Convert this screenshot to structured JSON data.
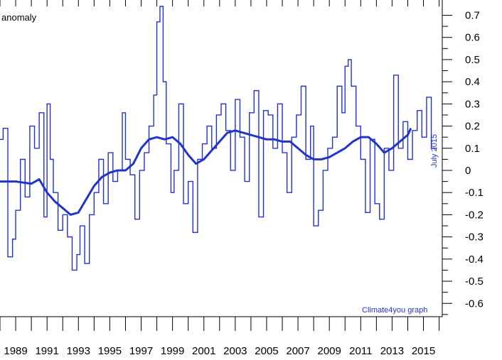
{
  "chart_data": {
    "type": "line",
    "title": "",
    "ylabel_partial": "anomaly",
    "annotations": {
      "date_stamp": "July 2015",
      "credit": "Climate4you graph"
    },
    "colors": {
      "series": "#2233cc",
      "axes": "#000000"
    },
    "grid": false,
    "xlim": [
      1988,
      2016.2
    ],
    "ylim": [
      -0.66,
      0.74
    ],
    "x_tick_labels": [
      "1989",
      "1991",
      "1993",
      "1995",
      "1997",
      "1999",
      "2001",
      "2003",
      "2005",
      "2007",
      "2009",
      "2011",
      "2013",
      "2015"
    ],
    "x_tick_values": [
      1989,
      1991,
      1993,
      1995,
      1997,
      1999,
      2001,
      2003,
      2005,
      2007,
      2009,
      2011,
      2013,
      2015
    ],
    "y_tick_labels": [
      "0.7",
      "0.6",
      "0.5",
      "0.4",
      "0.3",
      "0.2",
      "0.1",
      "0",
      "-0.1",
      "-0.2",
      "-0.3",
      "-0.4",
      "-0.5",
      "-0.6"
    ],
    "y_tick_values": [
      0.7,
      0.6,
      0.5,
      0.4,
      0.3,
      0.2,
      0.1,
      0,
      -0.1,
      -0.2,
      -0.3,
      -0.4,
      -0.5,
      -0.6
    ],
    "series": [
      {
        "style": "monthly-step",
        "x": [
          1988.0,
          1988.2,
          1988.5,
          1988.8,
          1989.0,
          1989.3,
          1989.6,
          1989.9,
          1990.2,
          1990.5,
          1990.8,
          1991.0,
          1991.2,
          1991.4,
          1991.7,
          1992.0,
          1992.3,
          1992.6,
          1992.9,
          1993.1,
          1993.4,
          1993.7,
          1994.0,
          1994.3,
          1994.6,
          1994.9,
          1995.2,
          1995.5,
          1995.8,
          1996.0,
          1996.3,
          1996.6,
          1996.9,
          1997.2,
          1997.5,
          1997.8,
          1998.0,
          1998.2,
          1998.4,
          1998.6,
          1998.9,
          1999.1,
          1999.4,
          1999.7,
          2000.0,
          2000.3,
          2000.6,
          2000.9,
          2001.2,
          2001.5,
          2001.8,
          2002.1,
          2002.4,
          2002.7,
          2003.0,
          2003.3,
          2003.6,
          2003.9,
          2004.2,
          2004.5,
          2004.8,
          2005.1,
          2005.4,
          2005.7,
          2006.0,
          2006.3,
          2006.6,
          2006.9,
          2007.2,
          2007.5,
          2007.8,
          2008.0,
          2008.3,
          2008.6,
          2008.9,
          2009.2,
          2009.5,
          2009.8,
          2010.0,
          2010.2,
          2010.4,
          2010.7,
          2011.0,
          2011.3,
          2011.6,
          2011.9,
          2012.2,
          2012.5,
          2012.8,
          2013.1,
          2013.4,
          2013.7,
          2014.0,
          2014.3,
          2014.6,
          2014.9,
          2015.2,
          2015.5
        ],
        "y": [
          0.14,
          0.19,
          -0.39,
          -0.31,
          -0.18,
          0.05,
          -0.12,
          0.2,
          0.1,
          0.26,
          -0.21,
          0.3,
          0.05,
          -0.1,
          -0.27,
          -0.2,
          -0.3,
          -0.45,
          -0.38,
          -0.25,
          -0.42,
          -0.2,
          -0.1,
          0.05,
          -0.15,
          0.08,
          -0.05,
          0.0,
          0.26,
          0.05,
          -0.02,
          -0.22,
          0.0,
          0.08,
          0.2,
          0.34,
          0.67,
          0.74,
          0.4,
          0.12,
          -0.1,
          0.0,
          0.3,
          -0.15,
          -0.05,
          -0.28,
          0.05,
          0.12,
          0.2,
          0.1,
          0.25,
          0.3,
          0.18,
          0.0,
          0.32,
          0.15,
          -0.05,
          0.26,
          0.36,
          -0.21,
          0.27,
          0.25,
          0.1,
          0.3,
          0.08,
          -0.1,
          0.15,
          0.25,
          0.38,
          0.05,
          0.2,
          -0.25,
          -0.18,
          0.0,
          0.1,
          0.15,
          0.38,
          0.26,
          0.47,
          0.5,
          0.38,
          0.2,
          0.05,
          -0.19,
          0.14,
          -0.15,
          -0.22,
          0.1,
          0.0,
          0.43,
          0.1,
          0.22,
          0.05,
          0.18,
          0.27,
          0.15,
          0.33,
          0.1
        ]
      },
      {
        "style": "smoothed",
        "x": [
          1988.0,
          1989.0,
          1990.0,
          1990.5,
          1991.0,
          1991.5,
          1992.0,
          1992.5,
          1993.0,
          1993.5,
          1994.0,
          1994.5,
          1995.0,
          1995.5,
          1996.0,
          1996.5,
          1997.0,
          1997.5,
          1998.0,
          1998.5,
          1999.0,
          1999.5,
          2000.0,
          2000.5,
          2001.0,
          2001.5,
          2002.0,
          2002.5,
          2003.0,
          2003.5,
          2004.0,
          2004.5,
          2005.0,
          2005.5,
          2006.0,
          2006.5,
          2007.0,
          2007.5,
          2008.0,
          2008.5,
          2009.0,
          2009.5,
          2010.0,
          2010.5,
          2011.0,
          2011.5,
          2012.0,
          2012.5,
          2013.0,
          2013.5,
          2014.0,
          2014.2
        ],
        "y": [
          -0.05,
          -0.05,
          -0.06,
          -0.04,
          -0.1,
          -0.14,
          -0.17,
          -0.2,
          -0.19,
          -0.13,
          -0.07,
          -0.03,
          -0.01,
          0.0,
          0.0,
          0.03,
          0.1,
          0.14,
          0.15,
          0.14,
          0.15,
          0.12,
          0.07,
          0.03,
          0.05,
          0.09,
          0.13,
          0.17,
          0.18,
          0.17,
          0.16,
          0.15,
          0.14,
          0.14,
          0.13,
          0.13,
          0.1,
          0.07,
          0.05,
          0.05,
          0.06,
          0.08,
          0.1,
          0.13,
          0.15,
          0.15,
          0.12,
          0.08,
          0.1,
          0.13,
          0.16,
          0.19
        ]
      }
    ]
  }
}
